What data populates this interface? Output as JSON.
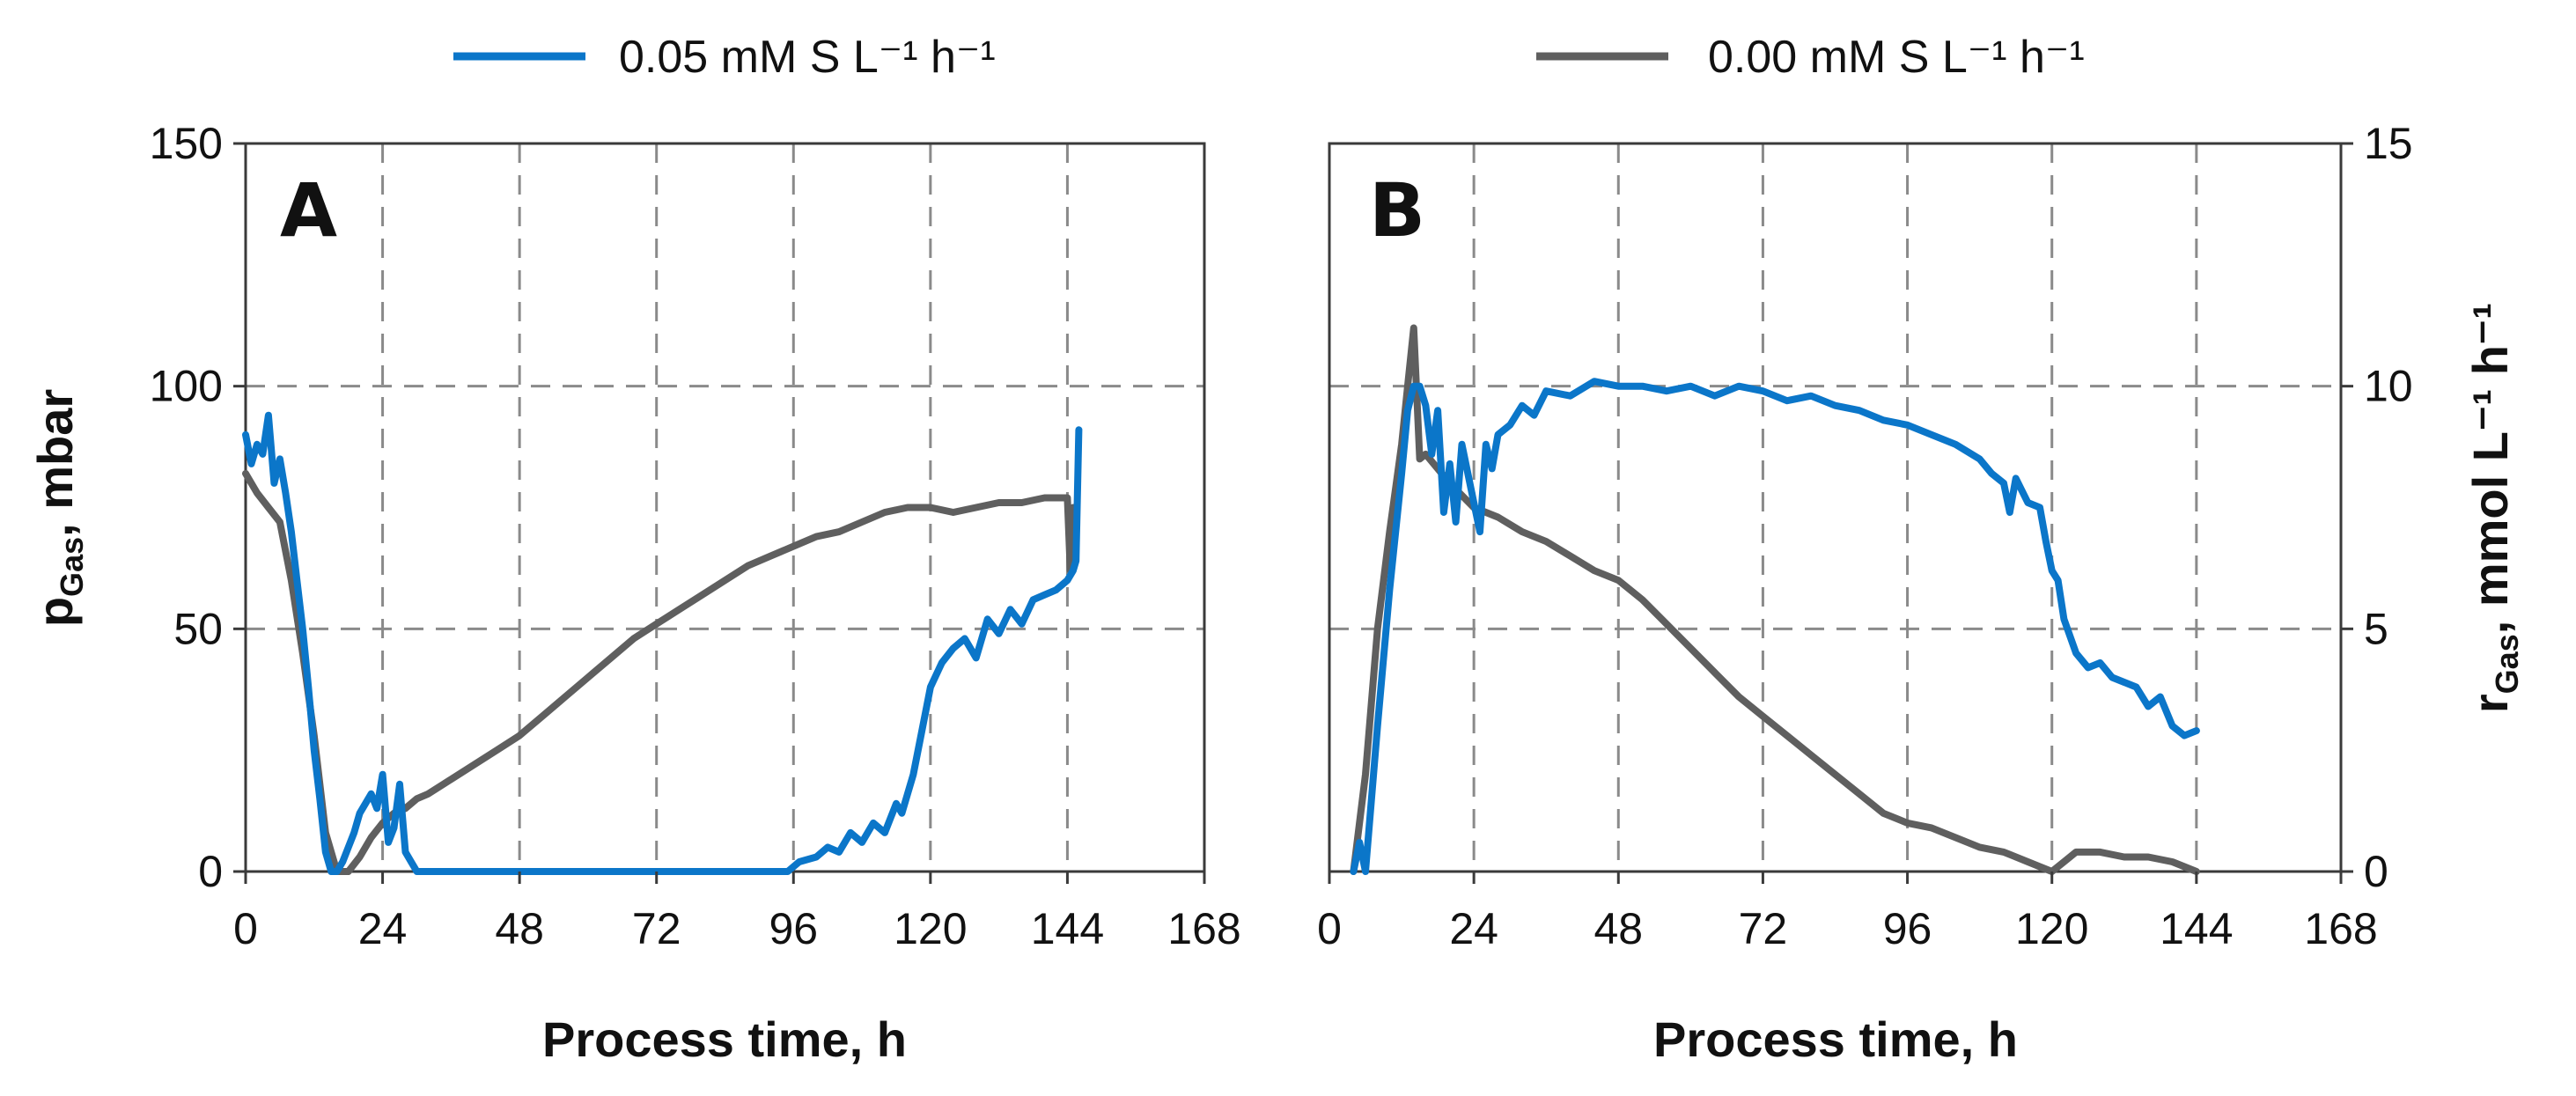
{
  "legend": [
    {
      "label": "0.05 mM S L⁻¹ h⁻¹",
      "color": "#0b76c9"
    },
    {
      "label": "0.00 mM S L⁻¹ h⁻¹",
      "color": "#5f5f5f"
    }
  ],
  "chart_data": [
    {
      "type": "line",
      "panel": "A",
      "xlabel": "Process time, h",
      "ylabel": "p",
      "ylabel_sub": "Gas",
      "ylabel_suffix": ", mbar",
      "xlim": [
        0,
        168
      ],
      "ylim": [
        0,
        150
      ],
      "xticks": [
        0,
        24,
        48,
        72,
        96,
        120,
        144,
        168
      ],
      "yticks": [
        0,
        50,
        100,
        150
      ],
      "grid": true,
      "series": [
        {
          "name": "0.00 mM S L⁻¹ h⁻¹",
          "color": "#5f5f5f",
          "x": [
            0,
            2,
            4,
            6,
            8,
            10,
            12,
            14,
            16,
            18,
            20,
            22,
            24,
            26,
            28,
            30,
            32,
            36,
            40,
            44,
            48,
            52,
            56,
            60,
            64,
            68,
            72,
            76,
            80,
            84,
            88,
            92,
            96,
            100,
            104,
            108,
            112,
            116,
            120,
            124,
            128,
            132,
            136,
            140,
            144,
            144.5,
            145
          ],
          "y": [
            82,
            78,
            75,
            72,
            60,
            45,
            28,
            8,
            0,
            0,
            3,
            7,
            10,
            12,
            13,
            15,
            16,
            19,
            22,
            25,
            28,
            32,
            36,
            40,
            44,
            48,
            51,
            54,
            57,
            60,
            63,
            65,
            67,
            69,
            70,
            72,
            74,
            75,
            75,
            74,
            75,
            76,
            76,
            77,
            77,
            62,
            75
          ]
        },
        {
          "name": "0.05 mM S L⁻¹ h⁻¹",
          "color": "#0b76c9",
          "x": [
            0,
            1,
            2,
            3,
            4,
            5,
            6,
            7,
            8,
            9,
            10,
            11,
            12,
            13,
            14,
            15,
            16,
            17,
            18,
            19,
            20,
            21,
            22,
            23,
            24,
            25,
            26,
            27,
            28,
            29,
            30,
            40,
            50,
            60,
            70,
            80,
            90,
            95,
            97,
            100,
            102,
            104,
            106,
            108,
            110,
            112,
            114,
            115,
            116,
            117,
            118,
            119,
            120,
            122,
            124,
            126,
            128,
            130,
            132,
            134,
            136,
            138,
            140,
            142,
            144,
            145,
            145.5,
            146
          ],
          "y": [
            90,
            84,
            88,
            86,
            94,
            80,
            85,
            78,
            70,
            60,
            50,
            38,
            25,
            15,
            4,
            0,
            0,
            2,
            5,
            8,
            12,
            14,
            16,
            13,
            20,
            6,
            9,
            18,
            4,
            2,
            0,
            0,
            0,
            0,
            0,
            0,
            0,
            0,
            2,
            3,
            5,
            4,
            8,
            6,
            10,
            8,
            14,
            12,
            16,
            20,
            26,
            32,
            38,
            43,
            46,
            48,
            44,
            52,
            49,
            54,
            51,
            56,
            57,
            58,
            60,
            62,
            64,
            91
          ]
        }
      ]
    },
    {
      "type": "line",
      "panel": "B",
      "xlabel": "Process time, h",
      "ylabel": "r",
      "ylabel_sub": "Gas",
      "ylabel_suffix": ", mmol L⁻¹ h⁻¹",
      "xlim": [
        0,
        168
      ],
      "ylim": [
        0,
        15
      ],
      "xticks": [
        0,
        24,
        48,
        72,
        96,
        120,
        144,
        168
      ],
      "yticks": [
        0,
        5,
        10,
        15
      ],
      "grid": true,
      "series": [
        {
          "name": "0.00 mM S L⁻¹ h⁻¹",
          "color": "#5f5f5f",
          "x": [
            4,
            6,
            8,
            10,
            12,
            13,
            14,
            15,
            16,
            20,
            24,
            28,
            32,
            36,
            40,
            44,
            48,
            52,
            56,
            60,
            64,
            68,
            72,
            76,
            80,
            84,
            88,
            92,
            96,
            100,
            104,
            108,
            112,
            116,
            118,
            120,
            122,
            124,
            128,
            132,
            136,
            140,
            144
          ],
          "y": [
            0,
            2,
            5,
            7,
            8.8,
            10,
            11.2,
            8.5,
            8.6,
            8,
            7.5,
            7.3,
            7.0,
            6.8,
            6.5,
            6.2,
            6.0,
            5.6,
            5.1,
            4.6,
            4.1,
            3.6,
            3.2,
            2.8,
            2.4,
            2.0,
            1.6,
            1.2,
            1.0,
            0.9,
            0.7,
            0.5,
            0.4,
            0.2,
            0.1,
            0.0,
            0.2,
            0.4,
            0.4,
            0.3,
            0.3,
            0.2,
            0.0
          ]
        },
        {
          "name": "0.05 mM S L⁻¹ h⁻¹",
          "color": "#0b76c9",
          "x": [
            4,
            5,
            6,
            8,
            10,
            12,
            13,
            14,
            15,
            16,
            17,
            18,
            19,
            20,
            21,
            22,
            24,
            25,
            26,
            27,
            28,
            30,
            32,
            34,
            36,
            40,
            44,
            48,
            52,
            56,
            60,
            64,
            68,
            72,
            76,
            80,
            84,
            88,
            92,
            96,
            100,
            104,
            108,
            110,
            112,
            113,
            114,
            116,
            118,
            119,
            120,
            121,
            122,
            124,
            126,
            128,
            130,
            132,
            134,
            136,
            138,
            140,
            142,
            144
          ],
          "y": [
            0,
            0.6,
            0,
            3,
            5.8,
            8.2,
            9.5,
            10,
            10,
            9.6,
            8.6,
            9.5,
            7.4,
            8.4,
            7.2,
            8.8,
            7.6,
            7.0,
            8.8,
            8.3,
            9.0,
            9.2,
            9.6,
            9.4,
            9.9,
            9.8,
            10.1,
            10.0,
            10.0,
            9.9,
            10.0,
            9.8,
            10.0,
            9.9,
            9.7,
            9.8,
            9.6,
            9.5,
            9.3,
            9.2,
            9.0,
            8.8,
            8.5,
            8.2,
            8.0,
            7.4,
            8.1,
            7.6,
            7.5,
            6.8,
            6.2,
            6.0,
            5.2,
            4.5,
            4.2,
            4.3,
            4.0,
            3.9,
            3.8,
            3.4,
            3.6,
            3.0,
            2.8,
            2.9
          ]
        }
      ]
    }
  ]
}
